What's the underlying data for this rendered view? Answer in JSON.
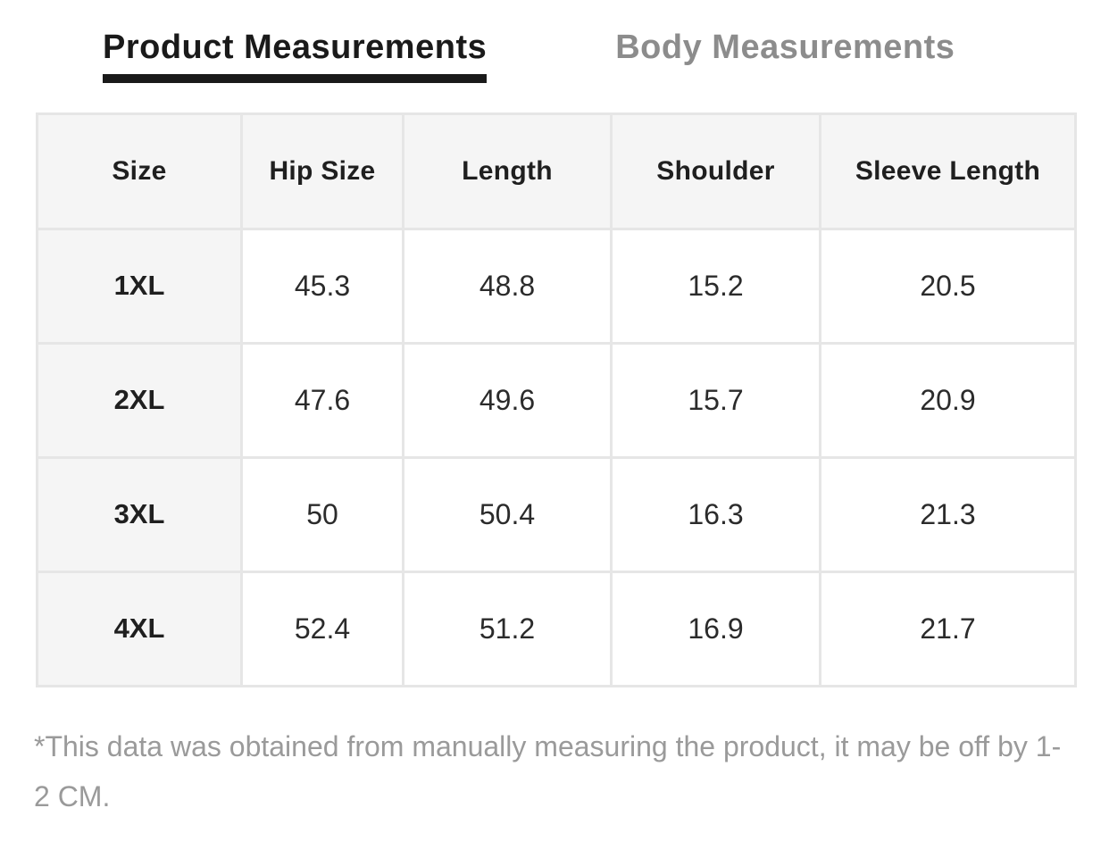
{
  "tabs": {
    "product": {
      "label": "Product Measurements",
      "active": true
    },
    "body": {
      "label": "Body Measurements",
      "active": false
    }
  },
  "table": {
    "columns": [
      "Size",
      "Hip Size",
      "Length",
      "Shoulder",
      "Sleeve Length"
    ],
    "rows": [
      {
        "cells": [
          "1XL",
          "45.3",
          "48.8",
          "15.2",
          "20.5"
        ]
      },
      {
        "cells": [
          "2XL",
          "47.6",
          "49.6",
          "15.7",
          "20.9"
        ]
      },
      {
        "cells": [
          "3XL",
          "50",
          "50.4",
          "16.3",
          "21.3"
        ]
      },
      {
        "cells": [
          "4XL",
          "52.4",
          "51.2",
          "16.9",
          "21.7"
        ]
      }
    ]
  },
  "footnote": "*This data was obtained from manually measuring the product, it may be off by 1-2 CM.",
  "colors": {
    "active_tab": "#1a1a1a",
    "inactive_tab": "#8c8c8c",
    "header_bg": "#f5f5f5",
    "cell_border": "#e6e6e6",
    "data_text": "#2b2b2b",
    "footnote_text": "#9a9a9a"
  }
}
